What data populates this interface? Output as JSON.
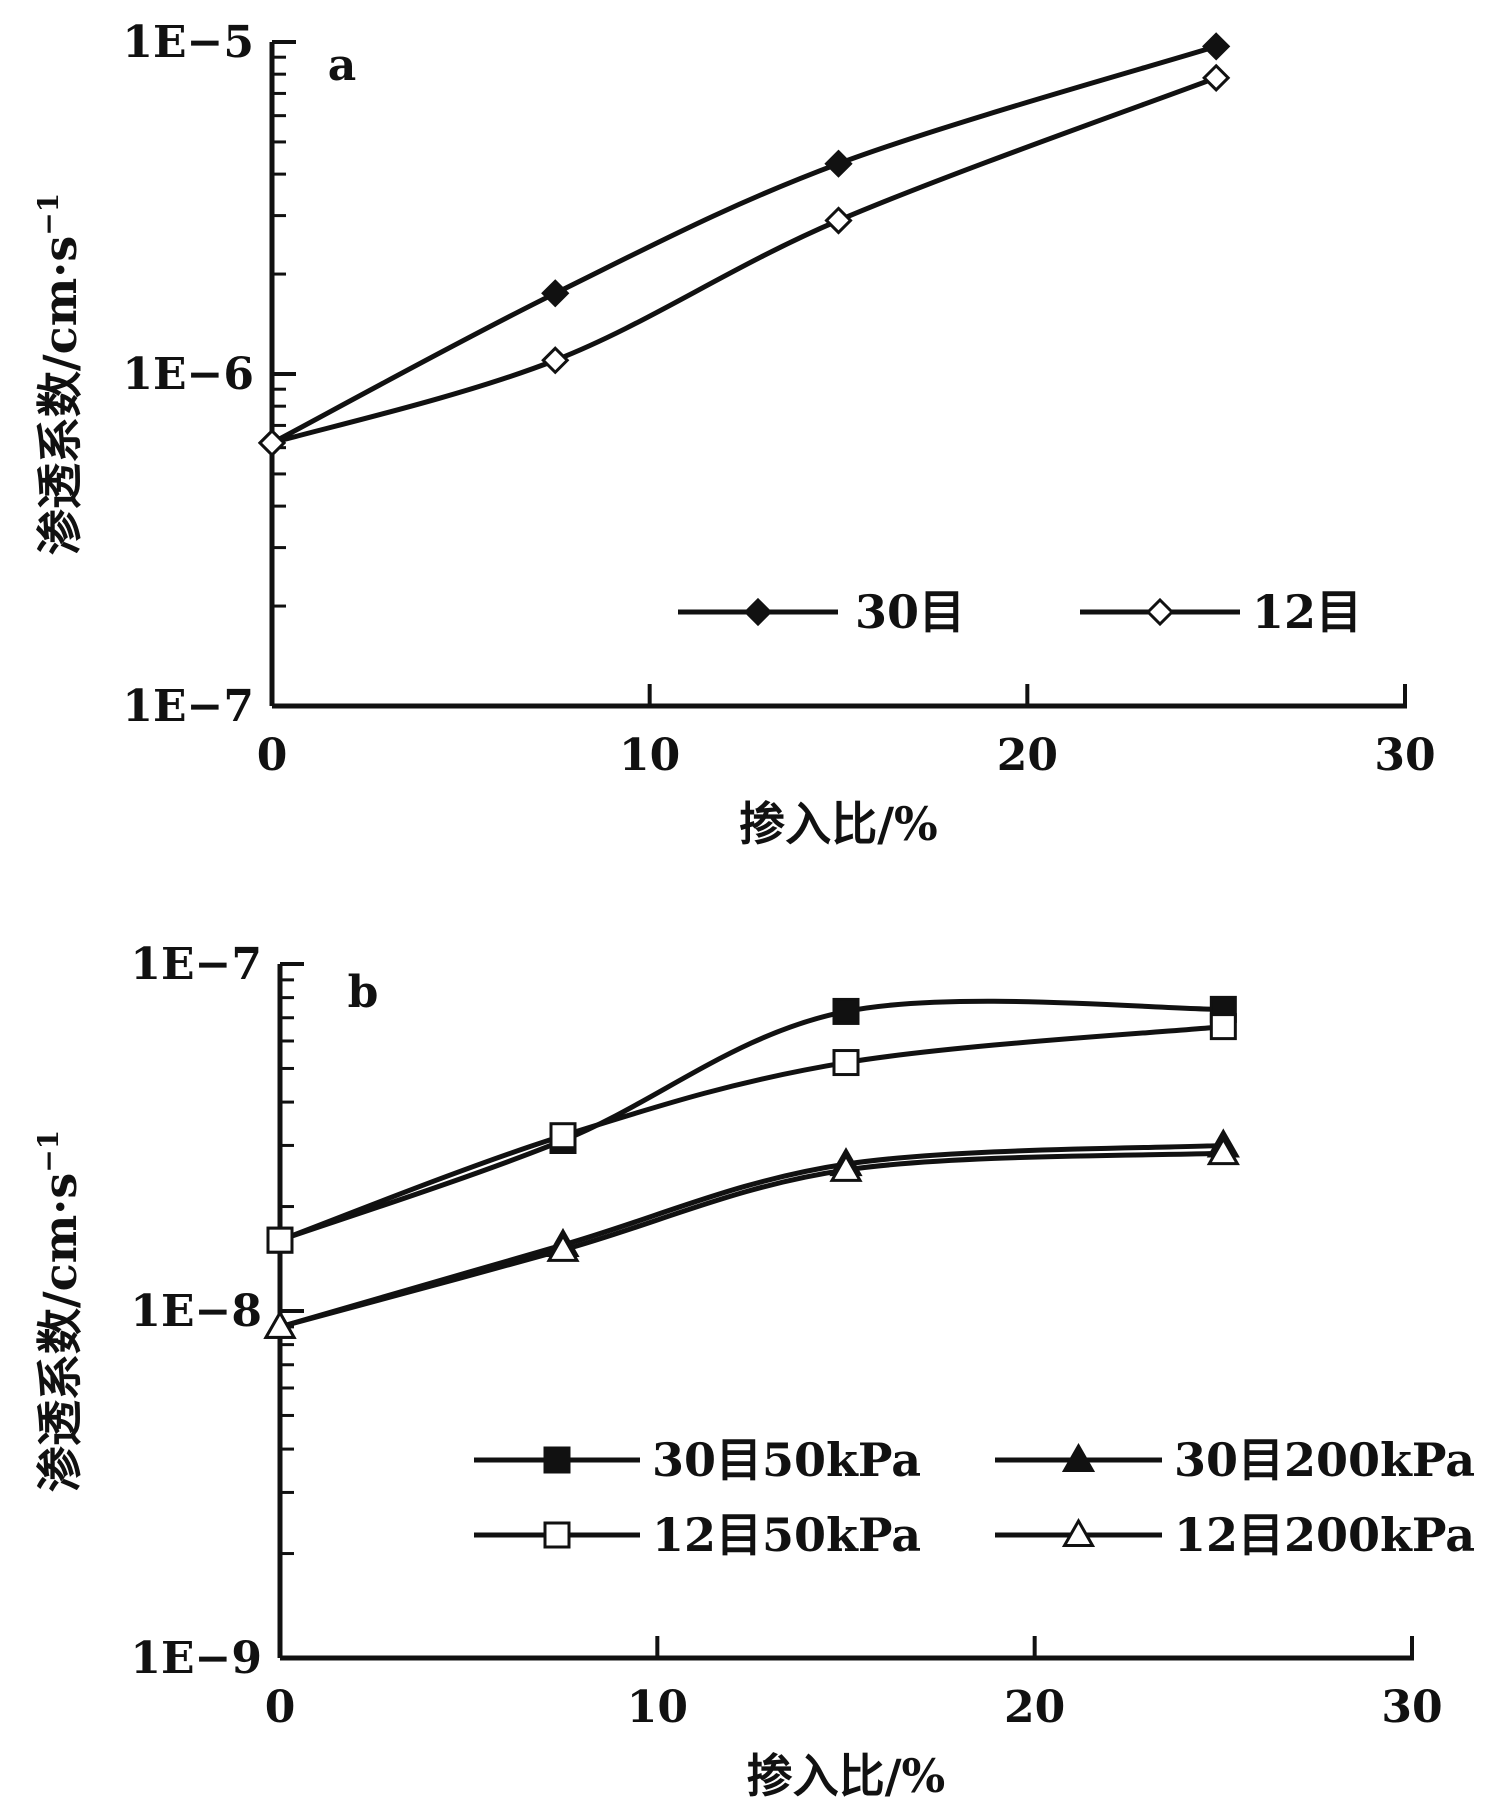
{
  "chart_data": [
    {
      "panel_label": "a",
      "type": "line",
      "yscale": "log",
      "xlim": [
        0,
        30
      ],
      "ylim": [
        1e-07,
        1e-05
      ],
      "xticks": [
        0,
        10,
        20,
        30
      ],
      "xtick_labels": [
        "0",
        "10",
        "20",
        "30"
      ],
      "yticks": [
        1e-07,
        1e-06,
        1e-05
      ],
      "ytick_labels": [
        "1E−7",
        "1E−6",
        "1E−5"
      ],
      "xlabel": "掺入比/%",
      "ylabel": "渗透系数/cm·s",
      "ylabel_sup": "−1",
      "legend_position": "bottom-right",
      "series": [
        {
          "name": "30目",
          "marker": "diamond-filled",
          "x": [
            0,
            7.5,
            15,
            25
          ],
          "y": [
            6.2e-07,
            1.75e-06,
            4.3e-06,
            9.7e-06
          ]
        },
        {
          "name": "12目",
          "marker": "diamond-open",
          "x": [
            0,
            7.5,
            15,
            25
          ],
          "y": [
            6.2e-07,
            1.1e-06,
            2.9e-06,
            7.8e-06
          ]
        }
      ]
    },
    {
      "panel_label": "b",
      "type": "line",
      "yscale": "log",
      "xlim": [
        0,
        30
      ],
      "ylim": [
        1e-09,
        1e-07
      ],
      "xticks": [
        0,
        10,
        20,
        30
      ],
      "xtick_labels": [
        "0",
        "10",
        "20",
        "30"
      ],
      "yticks": [
        1e-09,
        1e-08,
        1e-07
      ],
      "ytick_labels": [
        "1E−9",
        "1E−8",
        "1E−7"
      ],
      "xlabel": "掺入比/%",
      "ylabel": "渗透系数/cm·s",
      "ylabel_sup": "−1",
      "legend_position": "bottom-right",
      "series": [
        {
          "name": "30目50kPa",
          "marker": "square-filled",
          "x": [
            0,
            7.5,
            15,
            25
          ],
          "y": [
            1.6e-08,
            3.1e-08,
            7.3e-08,
            7.4e-08
          ]
        },
        {
          "name": "30目200kPa",
          "marker": "triangle-filled",
          "x": [
            0,
            7.5,
            15,
            25
          ],
          "y": [
            9e-09,
            1.55e-08,
            2.65e-08,
            3e-08
          ]
        },
        {
          "name": "12目50kPa",
          "marker": "square-open",
          "x": [
            0,
            7.5,
            15,
            25
          ],
          "y": [
            1.6e-08,
            3.2e-08,
            5.2e-08,
            6.6e-08
          ]
        },
        {
          "name": "12目200kPa",
          "marker": "triangle-open",
          "x": [
            0,
            7.5,
            15,
            25
          ],
          "y": [
            9e-09,
            1.5e-08,
            2.55e-08,
            2.85e-08
          ]
        }
      ]
    }
  ]
}
